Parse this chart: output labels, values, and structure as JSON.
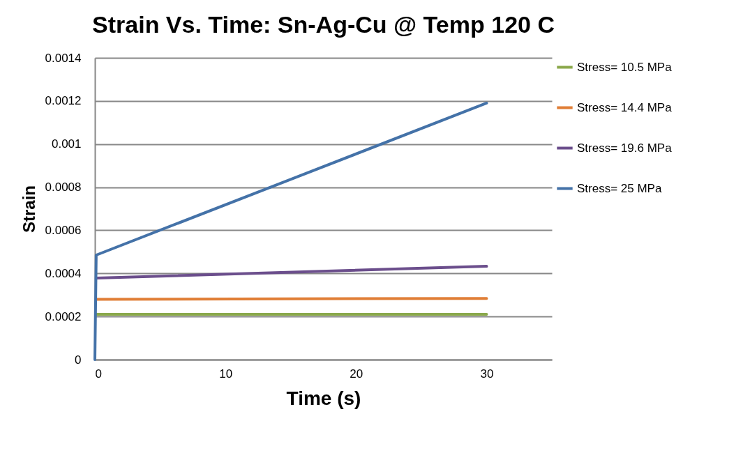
{
  "chart_data": {
    "type": "line",
    "title": "Strain Vs. Time: Sn-Ag-Cu @ Temp 120 C",
    "xlabel": "Time (s)",
    "ylabel": "Strain",
    "series": [
      {
        "name": "Stress= 10.5 MPa",
        "color": "#8aa84b",
        "x": [
          0.1,
          30
        ],
        "values": [
          0.00021,
          0.00021
        ]
      },
      {
        "name": "Stress= 14.4 MPa",
        "color": "#e07e36",
        "x": [
          0.1,
          30
        ],
        "values": [
          0.00028,
          0.000284
        ]
      },
      {
        "name": "Stress= 19.6 MPa",
        "color": "#6b4e8c",
        "x": [
          0.1,
          30
        ],
        "values": [
          0.000378,
          0.000433
        ]
      },
      {
        "name": "Stress= 25 MPa",
        "color": "#4472a8",
        "x": [
          0,
          0.1,
          30
        ],
        "values": [
          0,
          0.000485,
          0.00119
        ]
      }
    ],
    "xlim": [
      0,
      35
    ],
    "xticks": [
      0,
      10,
      20,
      30
    ],
    "ylim": [
      0,
      0.0014
    ],
    "yticks": [
      0,
      0.0002,
      0.0004,
      0.0006,
      0.0008,
      0.001,
      0.0012,
      0.0014
    ],
    "grid": "y",
    "legend": "right",
    "marker": "none",
    "line_style": "solid"
  }
}
